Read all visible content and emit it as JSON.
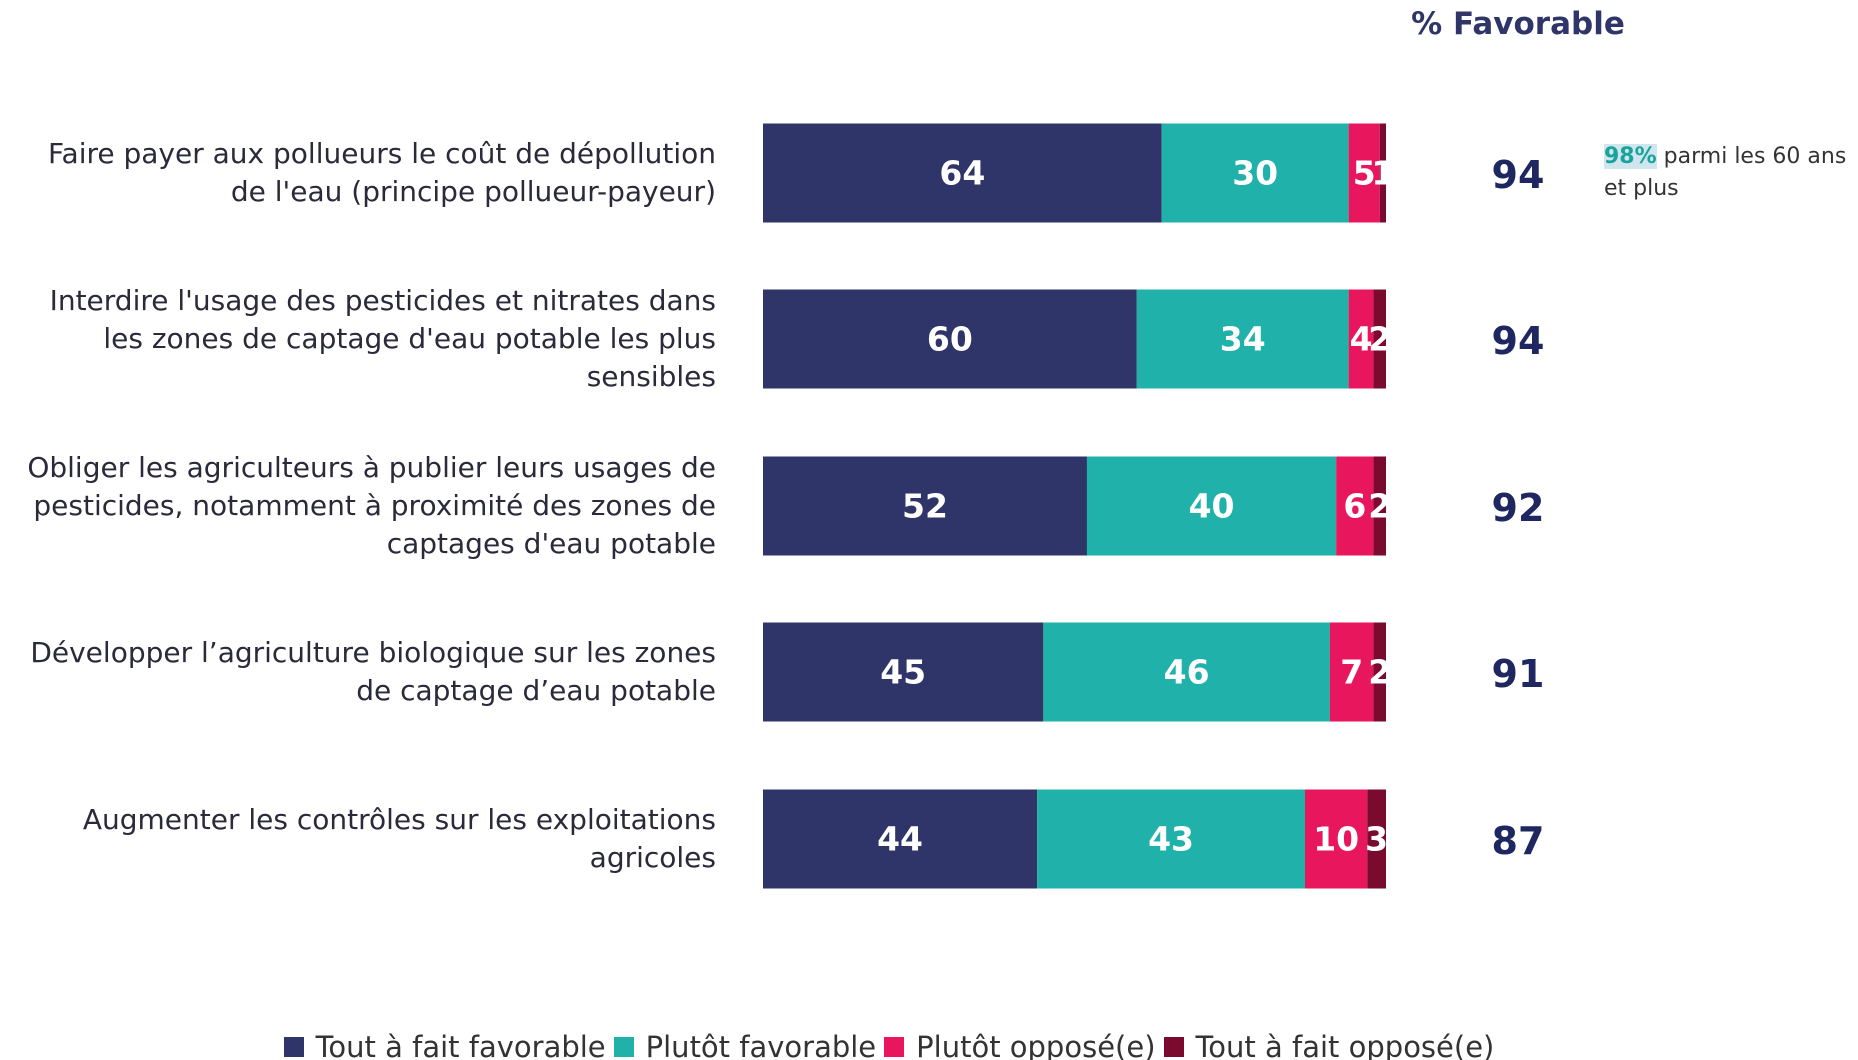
{
  "chart_data": {
    "type": "stacked-bar",
    "categories": [
      "Faire payer aux pollueurs le coût de dépollution de l'eau (principe pollueur-payeur)",
      "Interdire l'usage des pesticides et nitrates dans les zones de captage d'eau potable les plus sensibles",
      "Obliger les agriculteurs à publier leurs usages de pesticides, notamment à proximité des zones de captages d'eau potable",
      "Développer l’agriculture biologique sur les zones de captage d’eau potable",
      "Augmenter les contrôles sur les exploitations agricoles"
    ],
    "series": [
      {
        "name": "Tout à fait favorable",
        "color": "#2f3568",
        "values": [
          64,
          60,
          52,
          45,
          44
        ]
      },
      {
        "name": "Plutôt favorable",
        "color": "#20b2aa",
        "values": [
          30,
          34,
          40,
          46,
          43
        ]
      },
      {
        "name": "Plutôt opposé(e)",
        "color": "#e8175d",
        "values": [
          5,
          4,
          6,
          7,
          10
        ]
      },
      {
        "name": "Tout à fait opposé(e)",
        "color": "#7a0a2e",
        "values": [
          1,
          2,
          2,
          2,
          3
        ]
      }
    ],
    "xlim": [
      0,
      100
    ],
    "favorable": {
      "title": "% Favorable",
      "values": [
        94,
        94,
        92,
        91,
        87
      ]
    },
    "annotation": {
      "highlight": "98%",
      "text": "parmi les 60 ans et plus"
    }
  }
}
